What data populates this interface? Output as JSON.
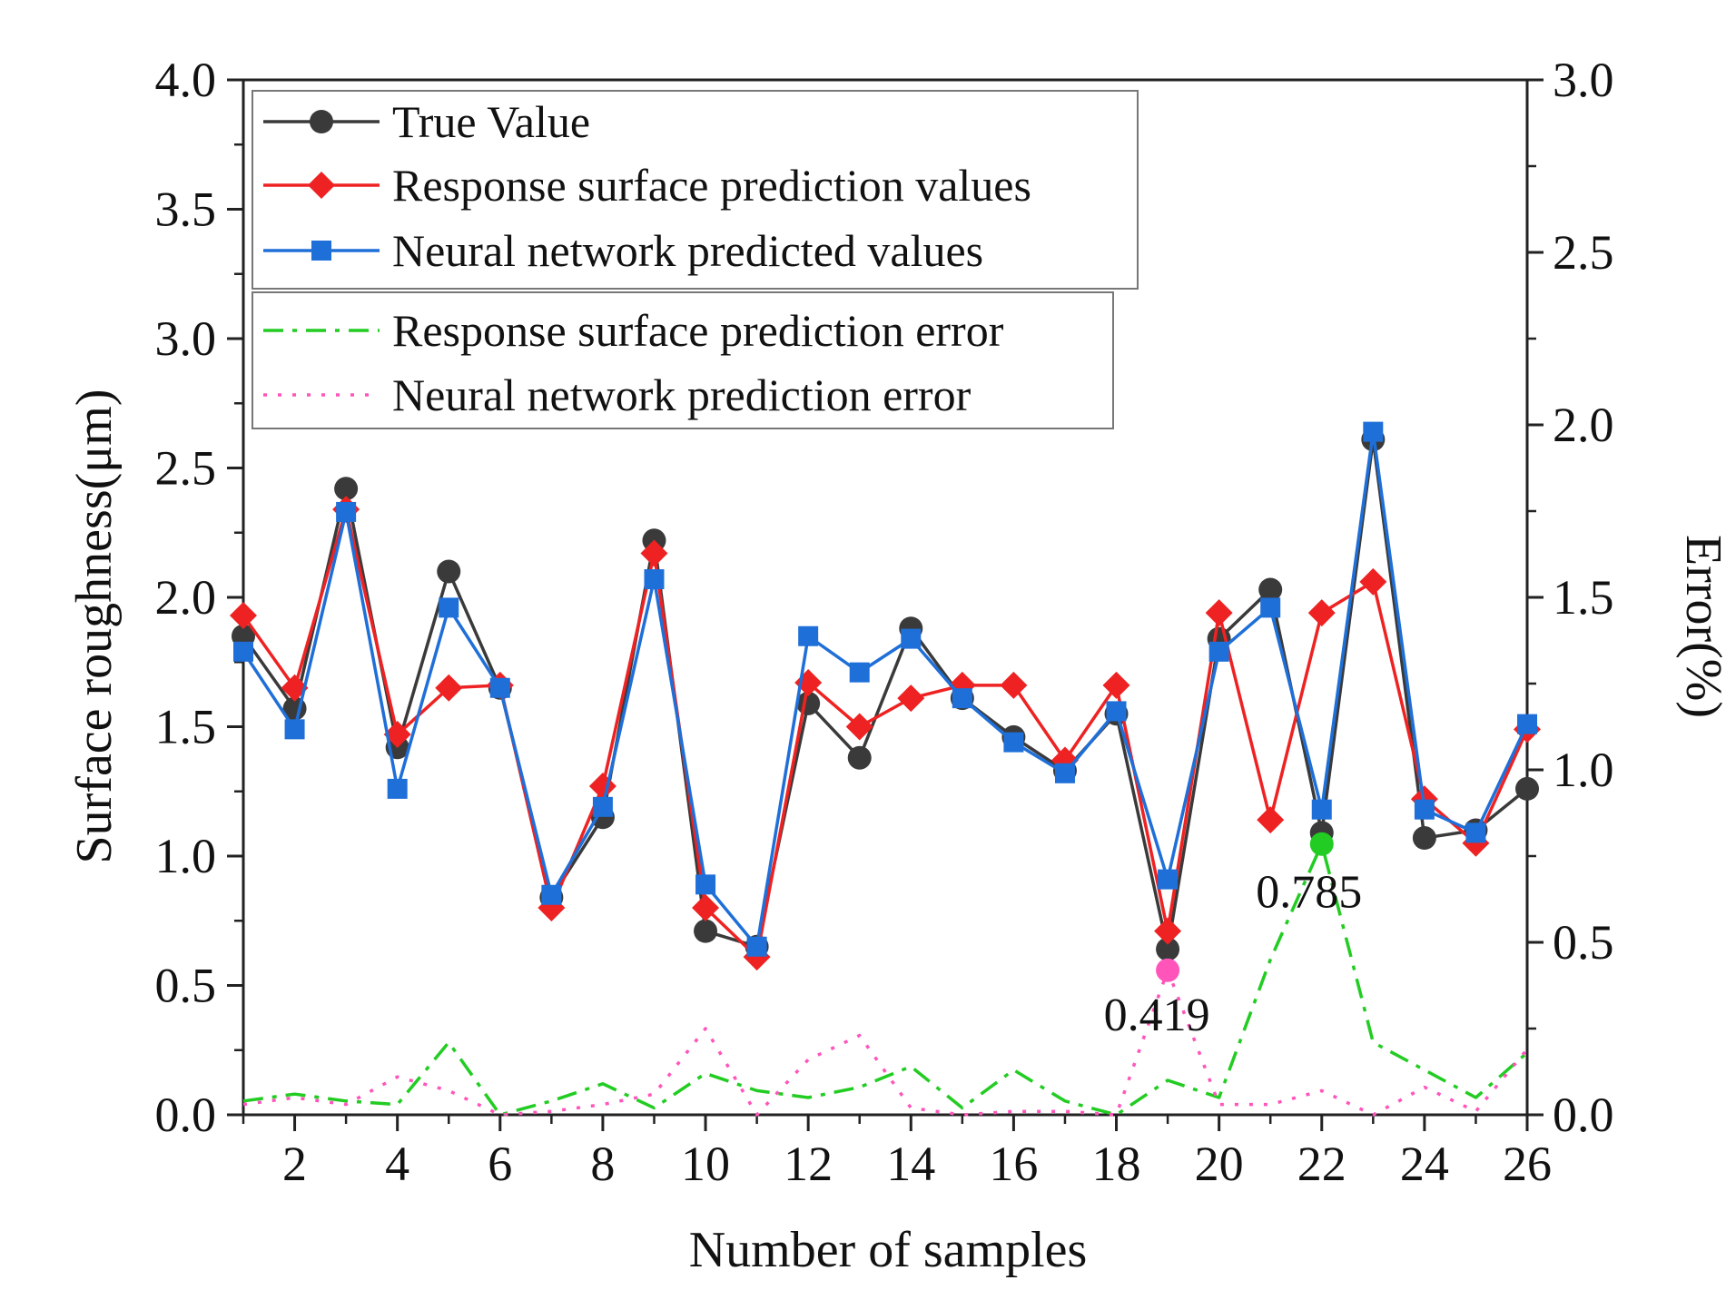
{
  "chart_data": {
    "type": "line",
    "xlabel": "Number of samples",
    "ylabel_left": "Surface roughness(μm)",
    "ylabel_right": "Error(%)",
    "xlim": [
      1,
      26
    ],
    "ylim_left": [
      0.0,
      4.0
    ],
    "ylim_right": [
      0.0,
      3.0
    ],
    "x_ticks": [
      "2",
      "4",
      "6",
      "8",
      "10",
      "12",
      "14",
      "16",
      "18",
      "20",
      "22",
      "24",
      "26"
    ],
    "y_left_ticks": [
      "0.0",
      "0.5",
      "1.0",
      "1.5",
      "2.0",
      "2.5",
      "3.0",
      "3.5",
      "4.0"
    ],
    "y_right_ticks": [
      "0.0",
      "0.5",
      "1.0",
      "1.5",
      "2.0",
      "2.5",
      "3.0"
    ],
    "x": [
      1,
      2,
      3,
      4,
      5,
      6,
      7,
      8,
      9,
      10,
      11,
      12,
      13,
      14,
      15,
      16,
      17,
      18,
      19,
      20,
      21,
      22,
      23,
      24,
      25,
      26
    ],
    "series": [
      {
        "name": "True Value",
        "axis": "left",
        "color": "#3a3a3a",
        "marker": "circle",
        "values": [
          1.85,
          1.57,
          2.42,
          1.42,
          2.1,
          1.65,
          0.84,
          1.15,
          2.22,
          0.71,
          0.65,
          1.59,
          1.38,
          1.88,
          1.61,
          1.46,
          1.33,
          1.55,
          0.64,
          1.84,
          2.03,
          1.09,
          2.61,
          1.07,
          1.1,
          1.26
        ]
      },
      {
        "name": "Response surface prediction values",
        "axis": "left",
        "color": "#ee2222",
        "marker": "diamond",
        "values": [
          1.93,
          1.65,
          2.34,
          1.47,
          1.65,
          1.66,
          0.8,
          1.27,
          2.17,
          0.8,
          0.61,
          1.67,
          1.5,
          1.61,
          1.66,
          1.66,
          1.37,
          1.66,
          0.71,
          1.94,
          1.14,
          1.94,
          2.06,
          1.22,
          1.05,
          1.49
        ]
      },
      {
        "name": "Neural network predicted values",
        "axis": "left",
        "color": "#1f6fd8",
        "marker": "square",
        "values": [
          1.79,
          1.49,
          2.33,
          1.26,
          1.96,
          1.65,
          0.85,
          1.19,
          2.07,
          0.89,
          0.65,
          1.85,
          1.71,
          1.84,
          1.61,
          1.44,
          1.32,
          1.56,
          0.91,
          1.79,
          1.96,
          1.18,
          2.64,
          1.18,
          1.09,
          1.51
        ]
      },
      {
        "name": "Response surface prediction error",
        "axis": "right",
        "color": "#22cc22",
        "style": "dash-dot",
        "values": [
          0.04,
          0.06,
          0.04,
          0.03,
          0.21,
          0.0,
          0.04,
          0.09,
          0.02,
          0.12,
          0.07,
          0.05,
          0.08,
          0.14,
          0.02,
          0.13,
          0.04,
          0.0,
          0.1,
          0.05,
          0.45,
          0.785,
          0.21,
          0.13,
          0.05,
          0.18
        ]
      },
      {
        "name": "Neural network prediction error",
        "axis": "right",
        "color": "#ff55bb",
        "style": "dotted",
        "values": [
          0.03,
          0.05,
          0.03,
          0.11,
          0.07,
          0.0,
          0.01,
          0.03,
          0.06,
          0.25,
          0.0,
          0.16,
          0.23,
          0.02,
          0.0,
          0.01,
          0.01,
          0.0,
          0.419,
          0.03,
          0.03,
          0.07,
          0.0,
          0.08,
          0.01,
          0.19
        ]
      }
    ],
    "annotations": [
      {
        "text": "0.785",
        "x": 22,
        "value": 0.785,
        "axis": "right",
        "color": "#22cc22"
      },
      {
        "text": "0.419",
        "x": 19,
        "value": 0.419,
        "axis": "right",
        "color": "#ff55bb"
      }
    ]
  }
}
